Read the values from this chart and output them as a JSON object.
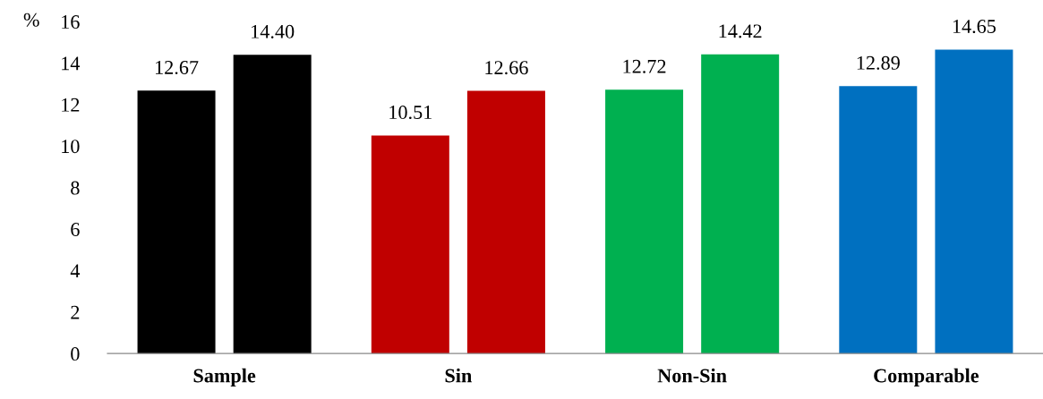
{
  "chart_data": {
    "type": "bar",
    "ylabel": "%",
    "categories": [
      "Sample",
      "Sin",
      "Non-Sin",
      "Comparable"
    ],
    "series": [
      {
        "colors": [
          "#000000",
          "#c00000",
          "#00b050",
          "#0070c0"
        ],
        "values": [
          12.67,
          10.51,
          12.72,
          12.89
        ],
        "value_labels": [
          "12.67",
          "10.51",
          "12.72",
          "12.89"
        ]
      },
      {
        "colors": [
          "#000000",
          "#c00000",
          "#00b050",
          "#0070c0"
        ],
        "values": [
          14.4,
          12.66,
          14.42,
          14.65
        ],
        "value_labels": [
          "14.40",
          "12.66",
          "14.42",
          "14.65"
        ]
      }
    ],
    "ylim": [
      0,
      16
    ],
    "yticks": [
      0,
      2,
      4,
      6,
      8,
      10,
      12,
      14,
      16
    ],
    "grid": false,
    "legend": false
  }
}
